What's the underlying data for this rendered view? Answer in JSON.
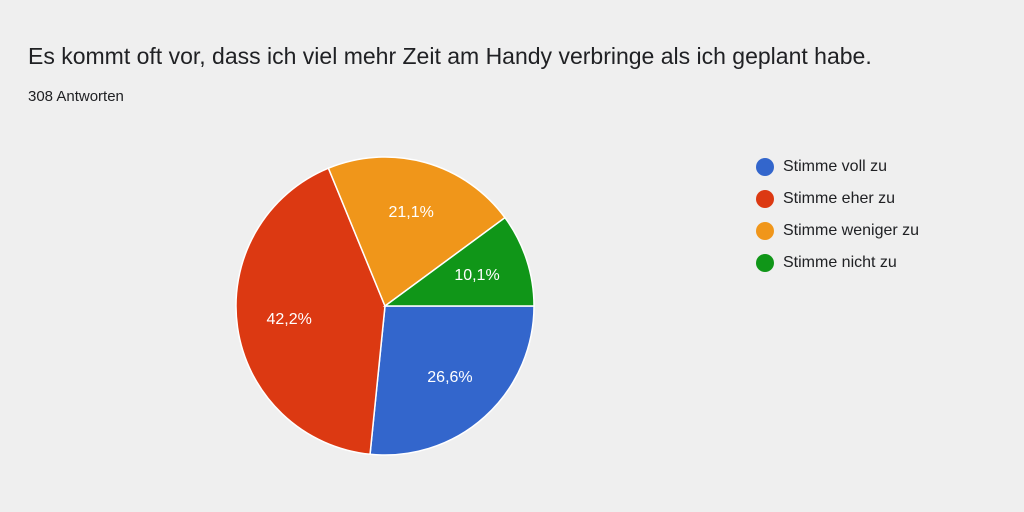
{
  "chart_data": {
    "type": "pie",
    "title": "Es kommt oft vor, dass ich viel mehr Zeit am Handy verbringe als ich geplant habe.",
    "subtitle": "308 Antworten",
    "categories": [
      "Stimme voll zu",
      "Stimme eher zu",
      "Stimme weniger zu",
      "Stimme nicht zu"
    ],
    "values": [
      26.6,
      42.2,
      21.1,
      10.1
    ],
    "value_labels": [
      "26,6%",
      "42,2%",
      "21,1%",
      "10,1%"
    ],
    "colors": [
      "#3366cc",
      "#dc3912",
      "#f0961a",
      "#109618"
    ],
    "legend": "right"
  }
}
